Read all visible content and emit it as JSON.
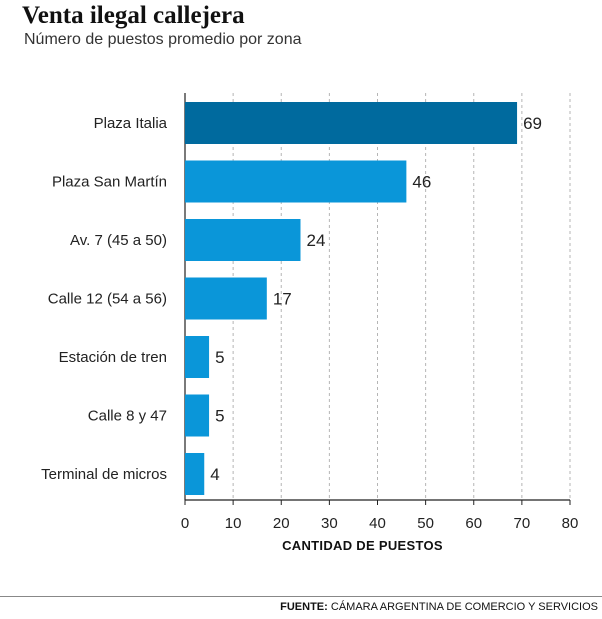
{
  "chart_data": {
    "type": "bar",
    "orientation": "horizontal",
    "title": "Venta ilegal callejera",
    "subtitle": "Número de puestos promedio por zona",
    "categories": [
      "Plaza Italia",
      "Plaza San Martín",
      "Av. 7 (45 a 50)",
      "Calle 12 (54 a 56)",
      "Estación de tren",
      "Calle 8 y 47",
      "Terminal de micros"
    ],
    "values": [
      69,
      46,
      24,
      17,
      5,
      5,
      4
    ],
    "xlabel": "CANTIDAD DE PUESTOS",
    "ylabel": "",
    "xlim": [
      0,
      80
    ],
    "xticks": [
      0,
      10,
      20,
      30,
      40,
      50,
      60,
      70,
      80
    ],
    "grid": "vertical dashed",
    "colors": {
      "highlight": "#006a9e",
      "bar": "#0a96d9"
    }
  },
  "footer": {
    "label": "FUENTE:",
    "text": "CÁMARA ARGENTINA DE COMERCIO Y SERVICIOS"
  }
}
